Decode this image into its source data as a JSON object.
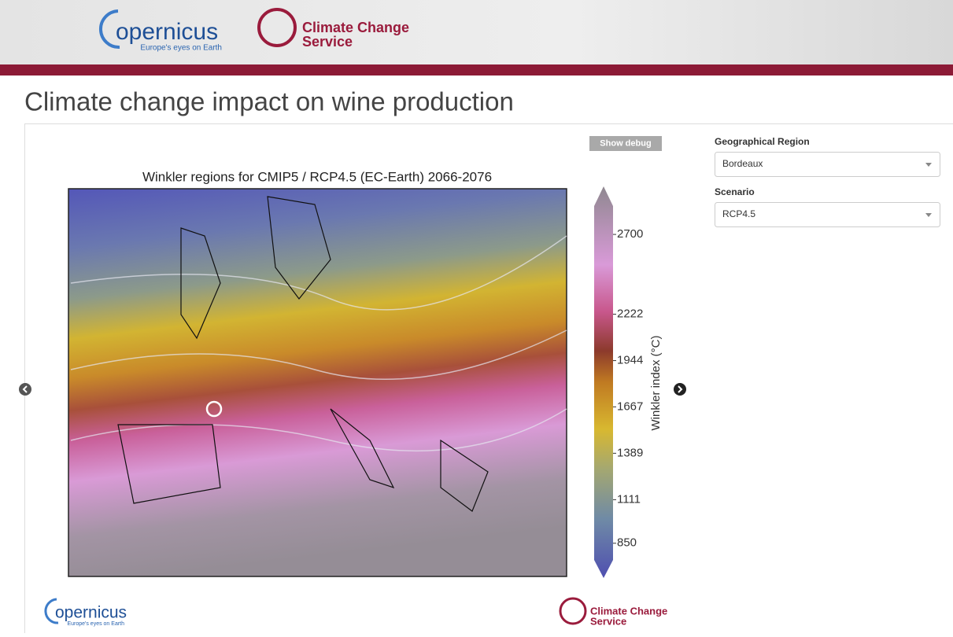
{
  "header": {
    "logo_copernicus": "opernicus",
    "logo_tagline": "Europe's eyes on Earth",
    "logo_service": "Climate Change",
    "logo_service_2": "Service"
  },
  "page_title": "Climate change impact on wine production",
  "debug_button": "Show debug",
  "map": {
    "title": "Winkler regions for CMIP5 / RCP4.5 (EC-Earth) 2066-2076",
    "colorbar": {
      "label": "Winkler index (°C)",
      "lim": [
        750,
        2870
      ],
      "ticks": [
        850,
        1111,
        1389,
        1667,
        1944,
        2222,
        2700
      ]
    }
  },
  "controls": {
    "region_label": "Geographical Region",
    "region_value": "Bordeaux",
    "scenario_label": "Scenario",
    "scenario_value": "RCP4.5"
  },
  "footer": {
    "logo_copernicus": "opernicus",
    "logo_tagline": "Europe's eyes on Earth",
    "logo_service": "Climate Change",
    "logo_service_2": "Service"
  }
}
